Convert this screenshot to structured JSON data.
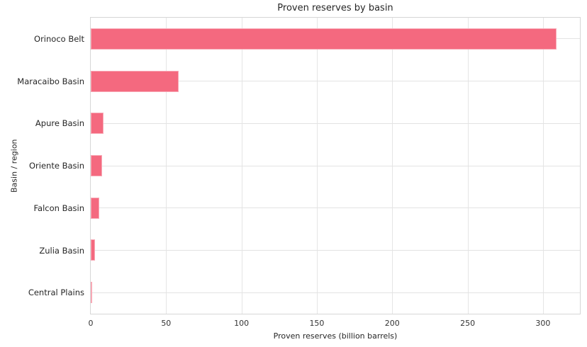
{
  "chart_data": {
    "type": "bar",
    "orientation": "horizontal",
    "title": "Proven reserves by basin",
    "xlabel": "Proven reserves (billion barrels)",
    "ylabel": "Basin / region",
    "categories": [
      "Orinoco Belt",
      "Maracaibo Basin",
      "Apure Basin",
      "Oriente Basin",
      "Falcon Basin",
      "Zulia Basin",
      "Central Plains"
    ],
    "values": [
      309,
      58.5,
      8.7,
      7.5,
      5.6,
      2.9,
      0.7
    ],
    "xticks": [
      0,
      50,
      100,
      150,
      200,
      250,
      300
    ],
    "xlim": [
      0,
      324.5
    ],
    "grid": true,
    "legend": "none",
    "colors": {
      "bar_fill": "#f4697f",
      "bar_edge": "#f8a9b6",
      "gridline": "#e5e5e5",
      "spine": "#d6d6d6",
      "text": "#262626",
      "background": "#ffffff"
    }
  }
}
